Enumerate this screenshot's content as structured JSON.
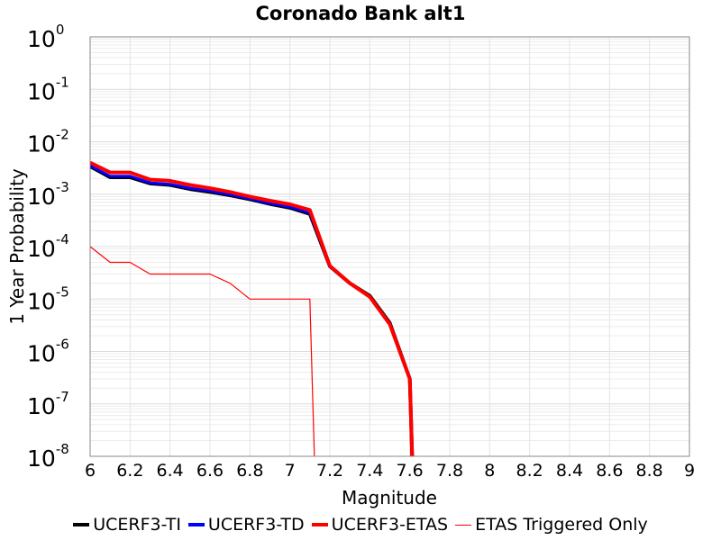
{
  "chart_data": {
    "type": "line",
    "title": "Coronado Bank alt1",
    "xlabel": "Magnitude",
    "ylabel": "1 Year Probability",
    "xlim": [
      6,
      9
    ],
    "ylim_log10": [
      -8,
      0
    ],
    "yscale": "log",
    "grid": true,
    "legend_position": "bottom",
    "x_ticks": [
      "6",
      "6.2",
      "6.4",
      "6.6",
      "6.8",
      "7",
      "7.2",
      "7.4",
      "7.6",
      "7.8",
      "8",
      "8.2",
      "8.4",
      "8.6",
      "8.8",
      "9"
    ],
    "y_ticks": [
      {
        "base": "10",
        "exp": "0"
      },
      {
        "base": "10",
        "exp": "-1"
      },
      {
        "base": "10",
        "exp": "-2"
      },
      {
        "base": "10",
        "exp": "-3"
      },
      {
        "base": "10",
        "exp": "-4"
      },
      {
        "base": "10",
        "exp": "-5"
      },
      {
        "base": "10",
        "exp": "-6"
      },
      {
        "base": "10",
        "exp": "-7"
      },
      {
        "base": "10",
        "exp": "-8"
      }
    ],
    "series": [
      {
        "name": "UCERF3-TI",
        "color": "#000000",
        "width": 4,
        "x": [
          6.0,
          6.1,
          6.2,
          6.3,
          6.4,
          6.5,
          6.6,
          6.7,
          6.8,
          6.9,
          7.0,
          7.1,
          7.2,
          7.3,
          7.4,
          7.5,
          7.6,
          7.62
        ],
        "y": [
          0.0034,
          0.0021,
          0.0021,
          0.0016,
          0.0015,
          0.00125,
          0.0011,
          0.00095,
          0.0008,
          0.00065,
          0.00055,
          0.00042,
          4.2e-05,
          2e-05,
          1.15e-05,
          3.5e-06,
          3e-07,
          0
        ]
      },
      {
        "name": "UCERF3-TD",
        "color": "#0000ff",
        "width": 3,
        "x": [
          6.0,
          6.1,
          6.2,
          6.3,
          6.4,
          6.5,
          6.6,
          6.7,
          6.8,
          6.9,
          7.0,
          7.1,
          7.2,
          7.3,
          7.4,
          7.5,
          7.6,
          7.62
        ],
        "y": [
          0.0035,
          0.0022,
          0.0022,
          0.00165,
          0.00155,
          0.0013,
          0.00115,
          0.00098,
          0.00082,
          0.00067,
          0.00057,
          0.00044,
          4.2e-05,
          2e-05,
          1.1e-05,
          3.4e-06,
          3e-07,
          0
        ]
      },
      {
        "name": "UCERF3-ETAS",
        "color": "#ff0000",
        "width": 4,
        "x": [
          6.0,
          6.1,
          6.2,
          6.3,
          6.4,
          6.5,
          6.6,
          6.7,
          6.8,
          6.9,
          7.0,
          7.1,
          7.2,
          7.3,
          7.4,
          7.5,
          7.6,
          7.62
        ],
        "y": [
          0.004,
          0.0026,
          0.0026,
          0.0019,
          0.0018,
          0.0015,
          0.0013,
          0.0011,
          0.0009,
          0.00075,
          0.00064,
          0.0005,
          4.3e-05,
          2e-05,
          1.1e-05,
          3.3e-06,
          3e-07,
          0
        ]
      },
      {
        "name": "ETAS Triggered Only",
        "color": "#ff0000",
        "width": 1.2,
        "x": [
          6.0,
          6.1,
          6.2,
          6.3,
          6.4,
          6.5,
          6.6,
          6.7,
          6.8,
          6.9,
          7.0,
          7.1,
          7.13
        ],
        "y": [
          0.0001,
          5e-05,
          5e-05,
          3e-05,
          3e-05,
          3e-05,
          3e-05,
          2e-05,
          1e-05,
          1e-05,
          1e-05,
          1e-05,
          0
        ]
      }
    ]
  }
}
